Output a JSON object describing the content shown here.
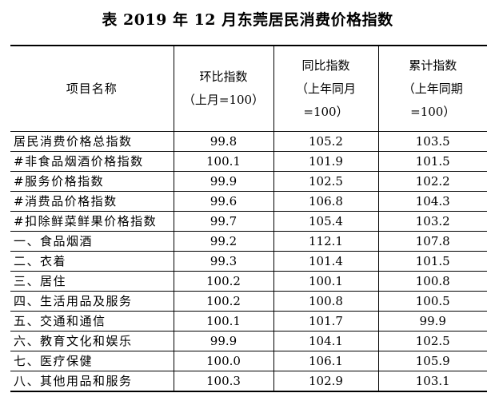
{
  "title": "表 2019 年 12 月东莞居民消费价格指数",
  "headers": {
    "item": "项目名称",
    "mom": [
      "环比指数",
      "（上月=100）"
    ],
    "yoy": [
      "同比指数",
      "（上年同月",
      "=100）"
    ],
    "cum": [
      "累计指数",
      "（上年同期",
      "=100）"
    ]
  },
  "rows": [
    {
      "name": "居民消费价格总指数",
      "mom": "99.8",
      "yoy": "105.2",
      "cum": "103.5"
    },
    {
      "name": "#非食品烟酒价格指数",
      "mom": "100.1",
      "yoy": "101.9",
      "cum": "101.5"
    },
    {
      "name": "#服务价格指数",
      "mom": "99.9",
      "yoy": "102.5",
      "cum": "102.2"
    },
    {
      "name": "#消费品价格指数",
      "mom": "99.6",
      "yoy": "106.8",
      "cum": "104.3"
    },
    {
      "name": "#扣除鲜菜鲜果价格指数",
      "mom": "99.7",
      "yoy": "105.4",
      "cum": "103.2"
    },
    {
      "name": "一、食品烟酒",
      "mom": "99.2",
      "yoy": "112.1",
      "cum": "107.8"
    },
    {
      "name": "二、衣着",
      "mom": "99.3",
      "yoy": "101.4",
      "cum": "101.5"
    },
    {
      "name": "三、居住",
      "mom": "100.2",
      "yoy": "100.1",
      "cum": "100.8"
    },
    {
      "name": "四、生活用品及服务",
      "mom": "100.2",
      "yoy": "100.8",
      "cum": "100.5"
    },
    {
      "name": "五、交通和通信",
      "mom": "100.1",
      "yoy": "101.7",
      "cum": "99.9"
    },
    {
      "name": "六、教育文化和娱乐",
      "mom": "99.9",
      "yoy": "104.1",
      "cum": "102.5"
    },
    {
      "name": "七、医疗保健",
      "mom": "100.0",
      "yoy": "106.1",
      "cum": "105.9"
    },
    {
      "name": "八、其他用品和服务",
      "mom": "100.3",
      "yoy": "102.9",
      "cum": "103.1"
    }
  ]
}
